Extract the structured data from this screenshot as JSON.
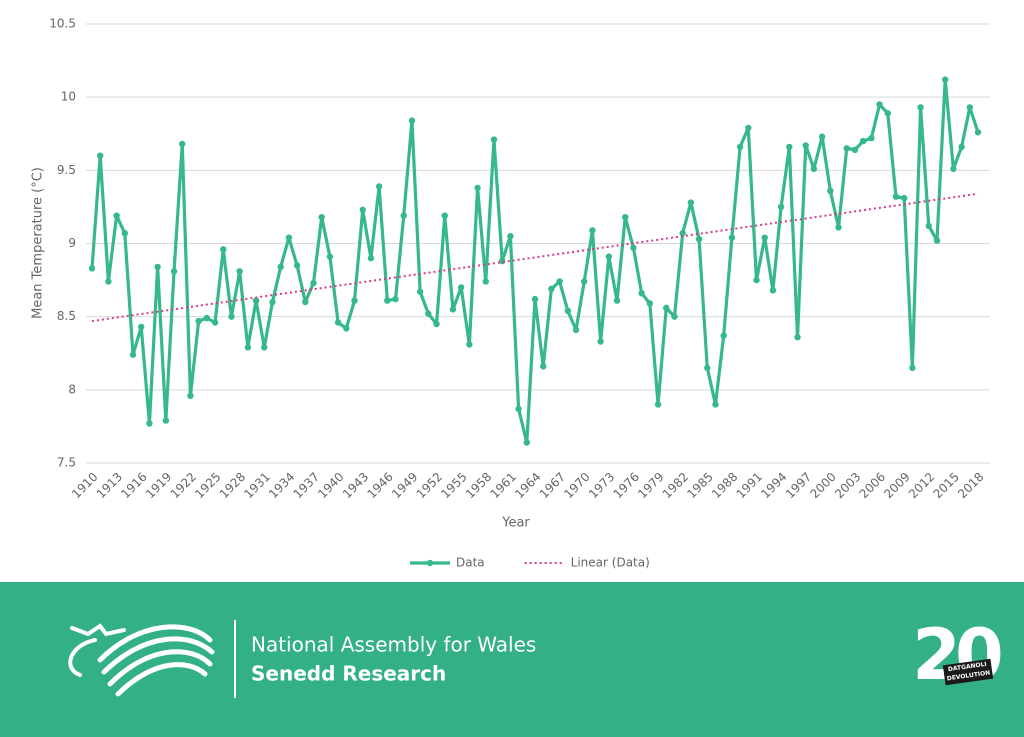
{
  "chart_data": {
    "type": "line",
    "y_label": "Mean Temperature (°C)",
    "x_label": "Year",
    "x": [
      1910,
      1911,
      1912,
      1913,
      1914,
      1915,
      1916,
      1917,
      1918,
      1919,
      1920,
      1921,
      1922,
      1923,
      1924,
      1925,
      1926,
      1927,
      1928,
      1929,
      1930,
      1931,
      1932,
      1933,
      1934,
      1935,
      1936,
      1937,
      1938,
      1939,
      1940,
      1941,
      1942,
      1943,
      1944,
      1945,
      1946,
      1947,
      1948,
      1949,
      1950,
      1951,
      1952,
      1953,
      1954,
      1955,
      1956,
      1957,
      1958,
      1959,
      1960,
      1961,
      1962,
      1963,
      1964,
      1965,
      1966,
      1967,
      1968,
      1969,
      1970,
      1971,
      1972,
      1973,
      1974,
      1975,
      1976,
      1977,
      1978,
      1979,
      1980,
      1981,
      1982,
      1983,
      1984,
      1985,
      1986,
      1987,
      1988,
      1989,
      1990,
      1991,
      1992,
      1993,
      1994,
      1995,
      1996,
      1997,
      1998,
      1999,
      2000,
      2001,
      2002,
      2003,
      2004,
      2005,
      2006,
      2007,
      2008,
      2009,
      2010,
      2011,
      2012,
      2013,
      2014,
      2015,
      2016,
      2017,
      2018
    ],
    "series": [
      {
        "name": "Data",
        "color": "#35b88a",
        "values": [
          8.83,
          9.6,
          8.74,
          9.19,
          9.07,
          8.24,
          8.43,
          7.77,
          8.84,
          7.79,
          8.81,
          9.68,
          7.96,
          8.47,
          8.49,
          8.46,
          8.96,
          8.5,
          8.81,
          8.29,
          8.61,
          8.29,
          8.6,
          8.84,
          9.04,
          8.85,
          8.6,
          8.73,
          9.18,
          8.91,
          8.46,
          8.42,
          8.61,
          9.23,
          8.9,
          9.39,
          8.61,
          8.62,
          9.19,
          9.84,
          8.67,
          8.52,
          8.45,
          9.19,
          8.55,
          8.7,
          8.31,
          9.38,
          8.74,
          9.71,
          8.88,
          9.05,
          7.87,
          7.64,
          8.62,
          8.16,
          8.69,
          8.74,
          8.54,
          8.41,
          8.74,
          9.09,
          8.33,
          8.91,
          8.61,
          9.18,
          8.97,
          8.66,
          8.59,
          7.9,
          8.56,
          8.5,
          9.07,
          9.28,
          9.03,
          8.15,
          7.9,
          8.37,
          9.04,
          9.66,
          9.79,
          8.75,
          9.04,
          8.68,
          9.25,
          9.66,
          8.36,
          9.67,
          9.51,
          9.73,
          9.36,
          9.11,
          9.65,
          9.64,
          9.7,
          9.72,
          9.95,
          9.89,
          9.32,
          9.31,
          8.15,
          9.93,
          9.12,
          9.02,
          10.12,
          9.51,
          9.66,
          9.93,
          9.76
        ]
      },
      {
        "name": "Linear (Data)",
        "color": "#d63a8c",
        "dashed": true,
        "x": [
          1910,
          2018
        ],
        "values": [
          8.47,
          9.34
        ]
      }
    ],
    "xlim": [
      1910,
      2018
    ],
    "xticks": [
      1910,
      1913,
      1916,
      1919,
      1922,
      1925,
      1928,
      1931,
      1934,
      1937,
      1940,
      1943,
      1946,
      1949,
      1952,
      1955,
      1958,
      1961,
      1964,
      1967,
      1970,
      1973,
      1976,
      1979,
      1982,
      1985,
      1988,
      1991,
      1994,
      1997,
      2000,
      2003,
      2006,
      2009,
      2012,
      2015,
      2018
    ],
    "ylim": [
      7.5,
      10.5
    ],
    "yticks": [
      7.5,
      8,
      8.5,
      9,
      9.5,
      10,
      10.5
    ],
    "grid": true,
    "legend": "bottom"
  },
  "footer": {
    "title": "National Assembly for Wales",
    "subtitle": "Senedd Research",
    "badge": "20",
    "badge_top": "DATGANOLI",
    "badge_bottom": "DEVOLUTION"
  }
}
